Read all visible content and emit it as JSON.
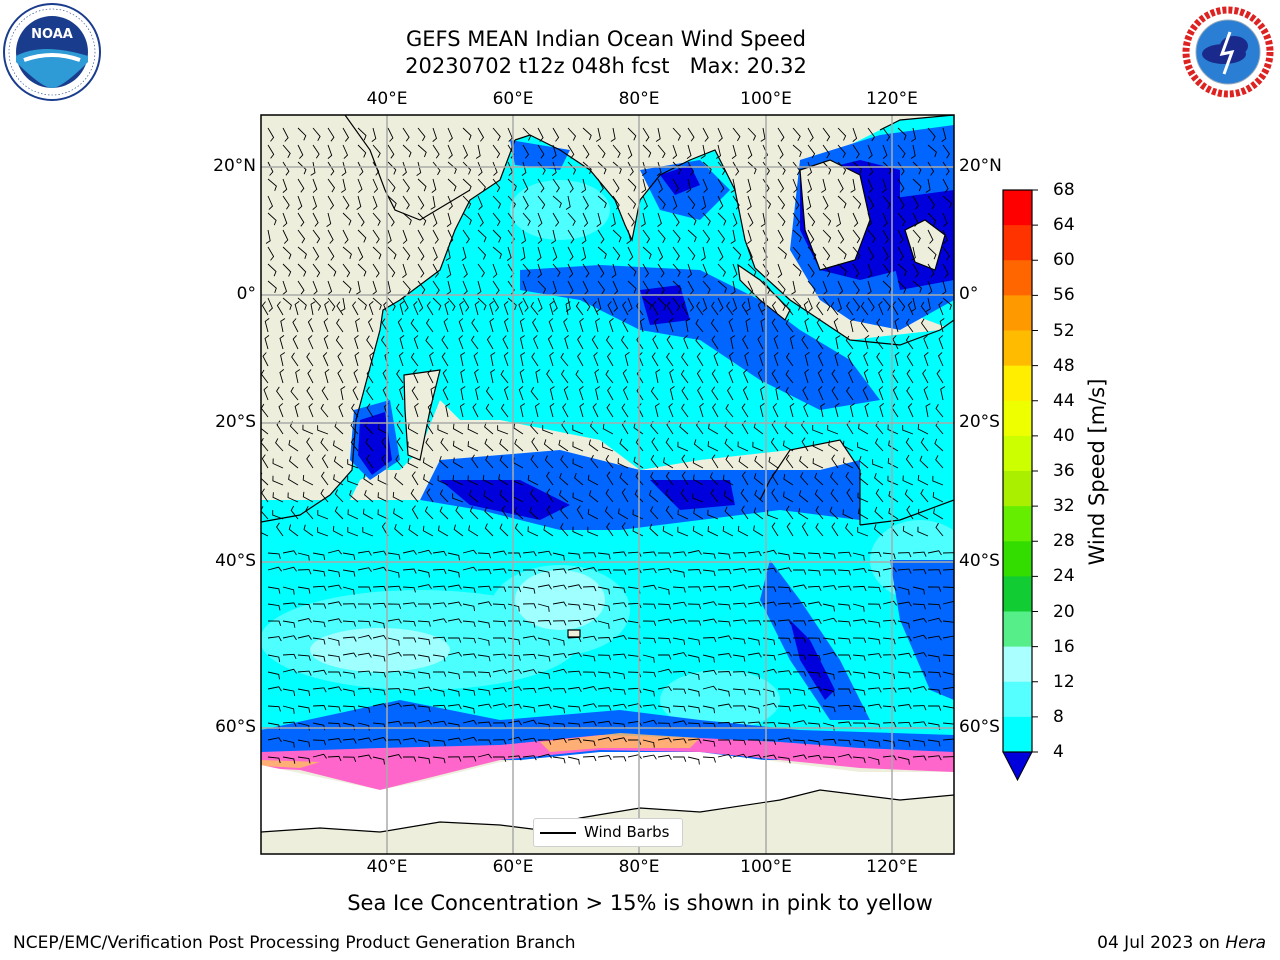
{
  "title": {
    "line1": "GEFS MEAN Indian Ocean Wind Speed",
    "line2": "20230702 t12z 048h fcst   Max: 20.32"
  },
  "axes": {
    "lon_ticks": [
      "40°E",
      "60°E",
      "80°E",
      "100°E",
      "120°E"
    ],
    "lat_ticks_left": [
      "20°N",
      "0°",
      "20°S",
      "40°S",
      "60°S"
    ],
    "lat_ticks_right": [
      "20°N",
      "0°",
      "20°S",
      "40°S",
      "60°S"
    ]
  },
  "colorbar": {
    "label": "Wind Speed [m/s]",
    "ticks": [
      "68",
      "64",
      "60",
      "56",
      "52",
      "48",
      "44",
      "40",
      "36",
      "32",
      "28",
      "24",
      "20",
      "16",
      "12",
      "8",
      "4"
    ],
    "colors": [
      "#ff0000",
      "#ff3300",
      "#ff6600",
      "#ff9900",
      "#ffbb00",
      "#ffee00",
      "#eeff00",
      "#ccff00",
      "#aaee00",
      "#66ee00",
      "#33dd00",
      "#11cc33",
      "#55ee88",
      "#aaffff",
      "#55ffff",
      "#00ffff",
      "#0066ff"
    ],
    "extend_color": "#0000dd"
  },
  "legend": {
    "label": "Wind Barbs"
  },
  "caption": "Sea Ice Concentration > 15% is shown in pink to yellow",
  "footer": {
    "left": "NCEP/EMC/Verification Post Processing Product Generation Branch",
    "right_prefix": "04 Jul 2023 on ",
    "right_host": "Hera"
  },
  "logos": {
    "left": "NOAA",
    "right": "NATIONAL WEATHER SERVICE"
  },
  "map": {
    "land_color": "#eeeedd",
    "ocean_color": "#00ffff",
    "ice_color": "#ffffff",
    "grid_color": "#aaaaaa"
  }
}
